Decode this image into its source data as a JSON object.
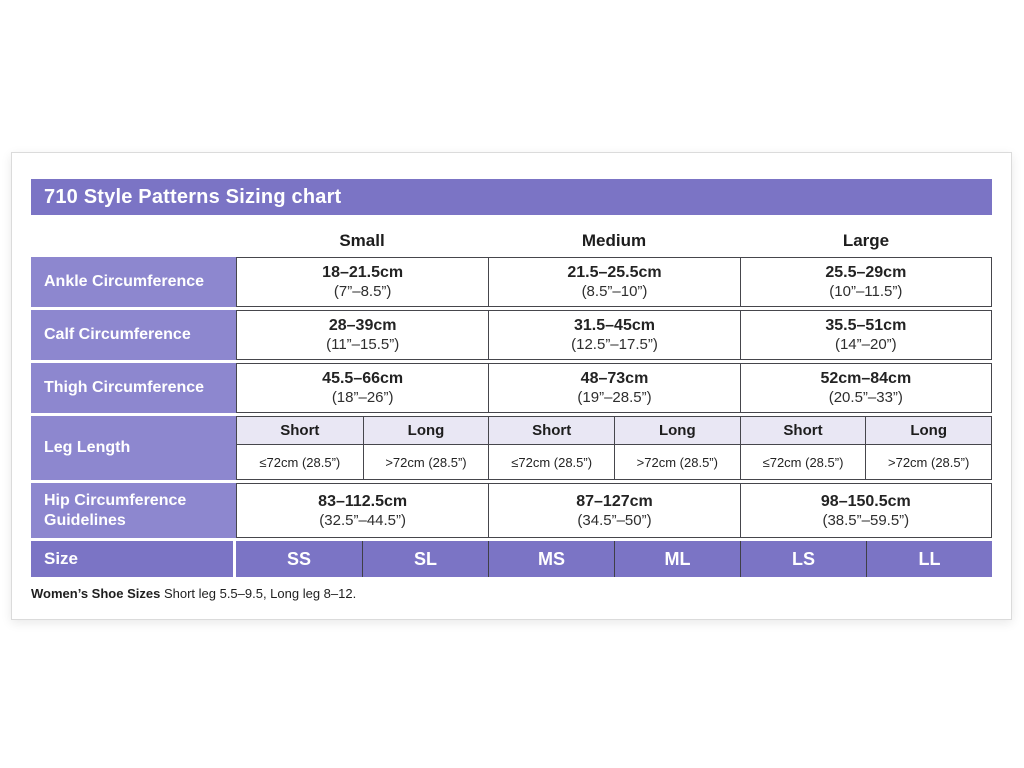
{
  "header": {
    "title": "710 Style Patterns Sizing chart",
    "columns": [
      "Small",
      "Medium",
      "Large"
    ]
  },
  "table": {
    "measurement_rows": [
      {
        "label": "Ankle Circumference",
        "values": [
          {
            "cm": "18–21.5cm",
            "inches": "(7”–8.5”)"
          },
          {
            "cm": "21.5–25.5cm",
            "inches": "(8.5”–10”)"
          },
          {
            "cm": "25.5–29cm",
            "inches": "(10”–11.5”)"
          }
        ]
      },
      {
        "label": "Calf Circumference",
        "values": [
          {
            "cm": "28–39cm",
            "inches": "(11”–15.5”)"
          },
          {
            "cm": "31.5–45cm",
            "inches": "(12.5”–17.5”)"
          },
          {
            "cm": "35.5–51cm",
            "inches": "(14”–20”)"
          }
        ]
      },
      {
        "label": "Thigh Circumference",
        "values": [
          {
            "cm": "45.5–66cm",
            "inches": "(18”–26”)"
          },
          {
            "cm": "48–73cm",
            "inches": "(19”–28.5”)"
          },
          {
            "cm": "52cm–84cm",
            "inches": "(20.5”–33”)"
          }
        ]
      },
      {
        "label": "Hip Circumference Guidelines",
        "values": [
          {
            "cm": "83–112.5cm",
            "inches": "(32.5”–44.5”)"
          },
          {
            "cm": "87–127cm",
            "inches": "(34.5”–50”)"
          },
          {
            "cm": "98–150.5cm",
            "inches": "(38.5”–59.5”)"
          }
        ]
      }
    ],
    "leg_length": {
      "label": "Leg Length",
      "subheader_cells": [
        "Short",
        "Long",
        "Short",
        "Long",
        "Short",
        "Long"
      ],
      "value_cells": [
        "≤72cm (28.5”)",
        ">72cm (28.5”)",
        "≤72cm (28.5”)",
        ">72cm (28.5”)",
        "≤72cm (28.5”)",
        ">72cm (28.5”)"
      ]
    },
    "size_row": {
      "label": "Size",
      "sizes": [
        "SS",
        "SL",
        "MS",
        "ML",
        "LS",
        "LL"
      ]
    }
  },
  "footnote": {
    "bold": "Women’s Shoe Sizes",
    "rest": " Short leg 5.5–9.5, Long leg 8–12."
  },
  "colors": {
    "banner_purple": "#7B74C5",
    "label_purple": "#8D87CF",
    "subheader_lavender": "#E9E7F4",
    "border": "#46464C"
  }
}
